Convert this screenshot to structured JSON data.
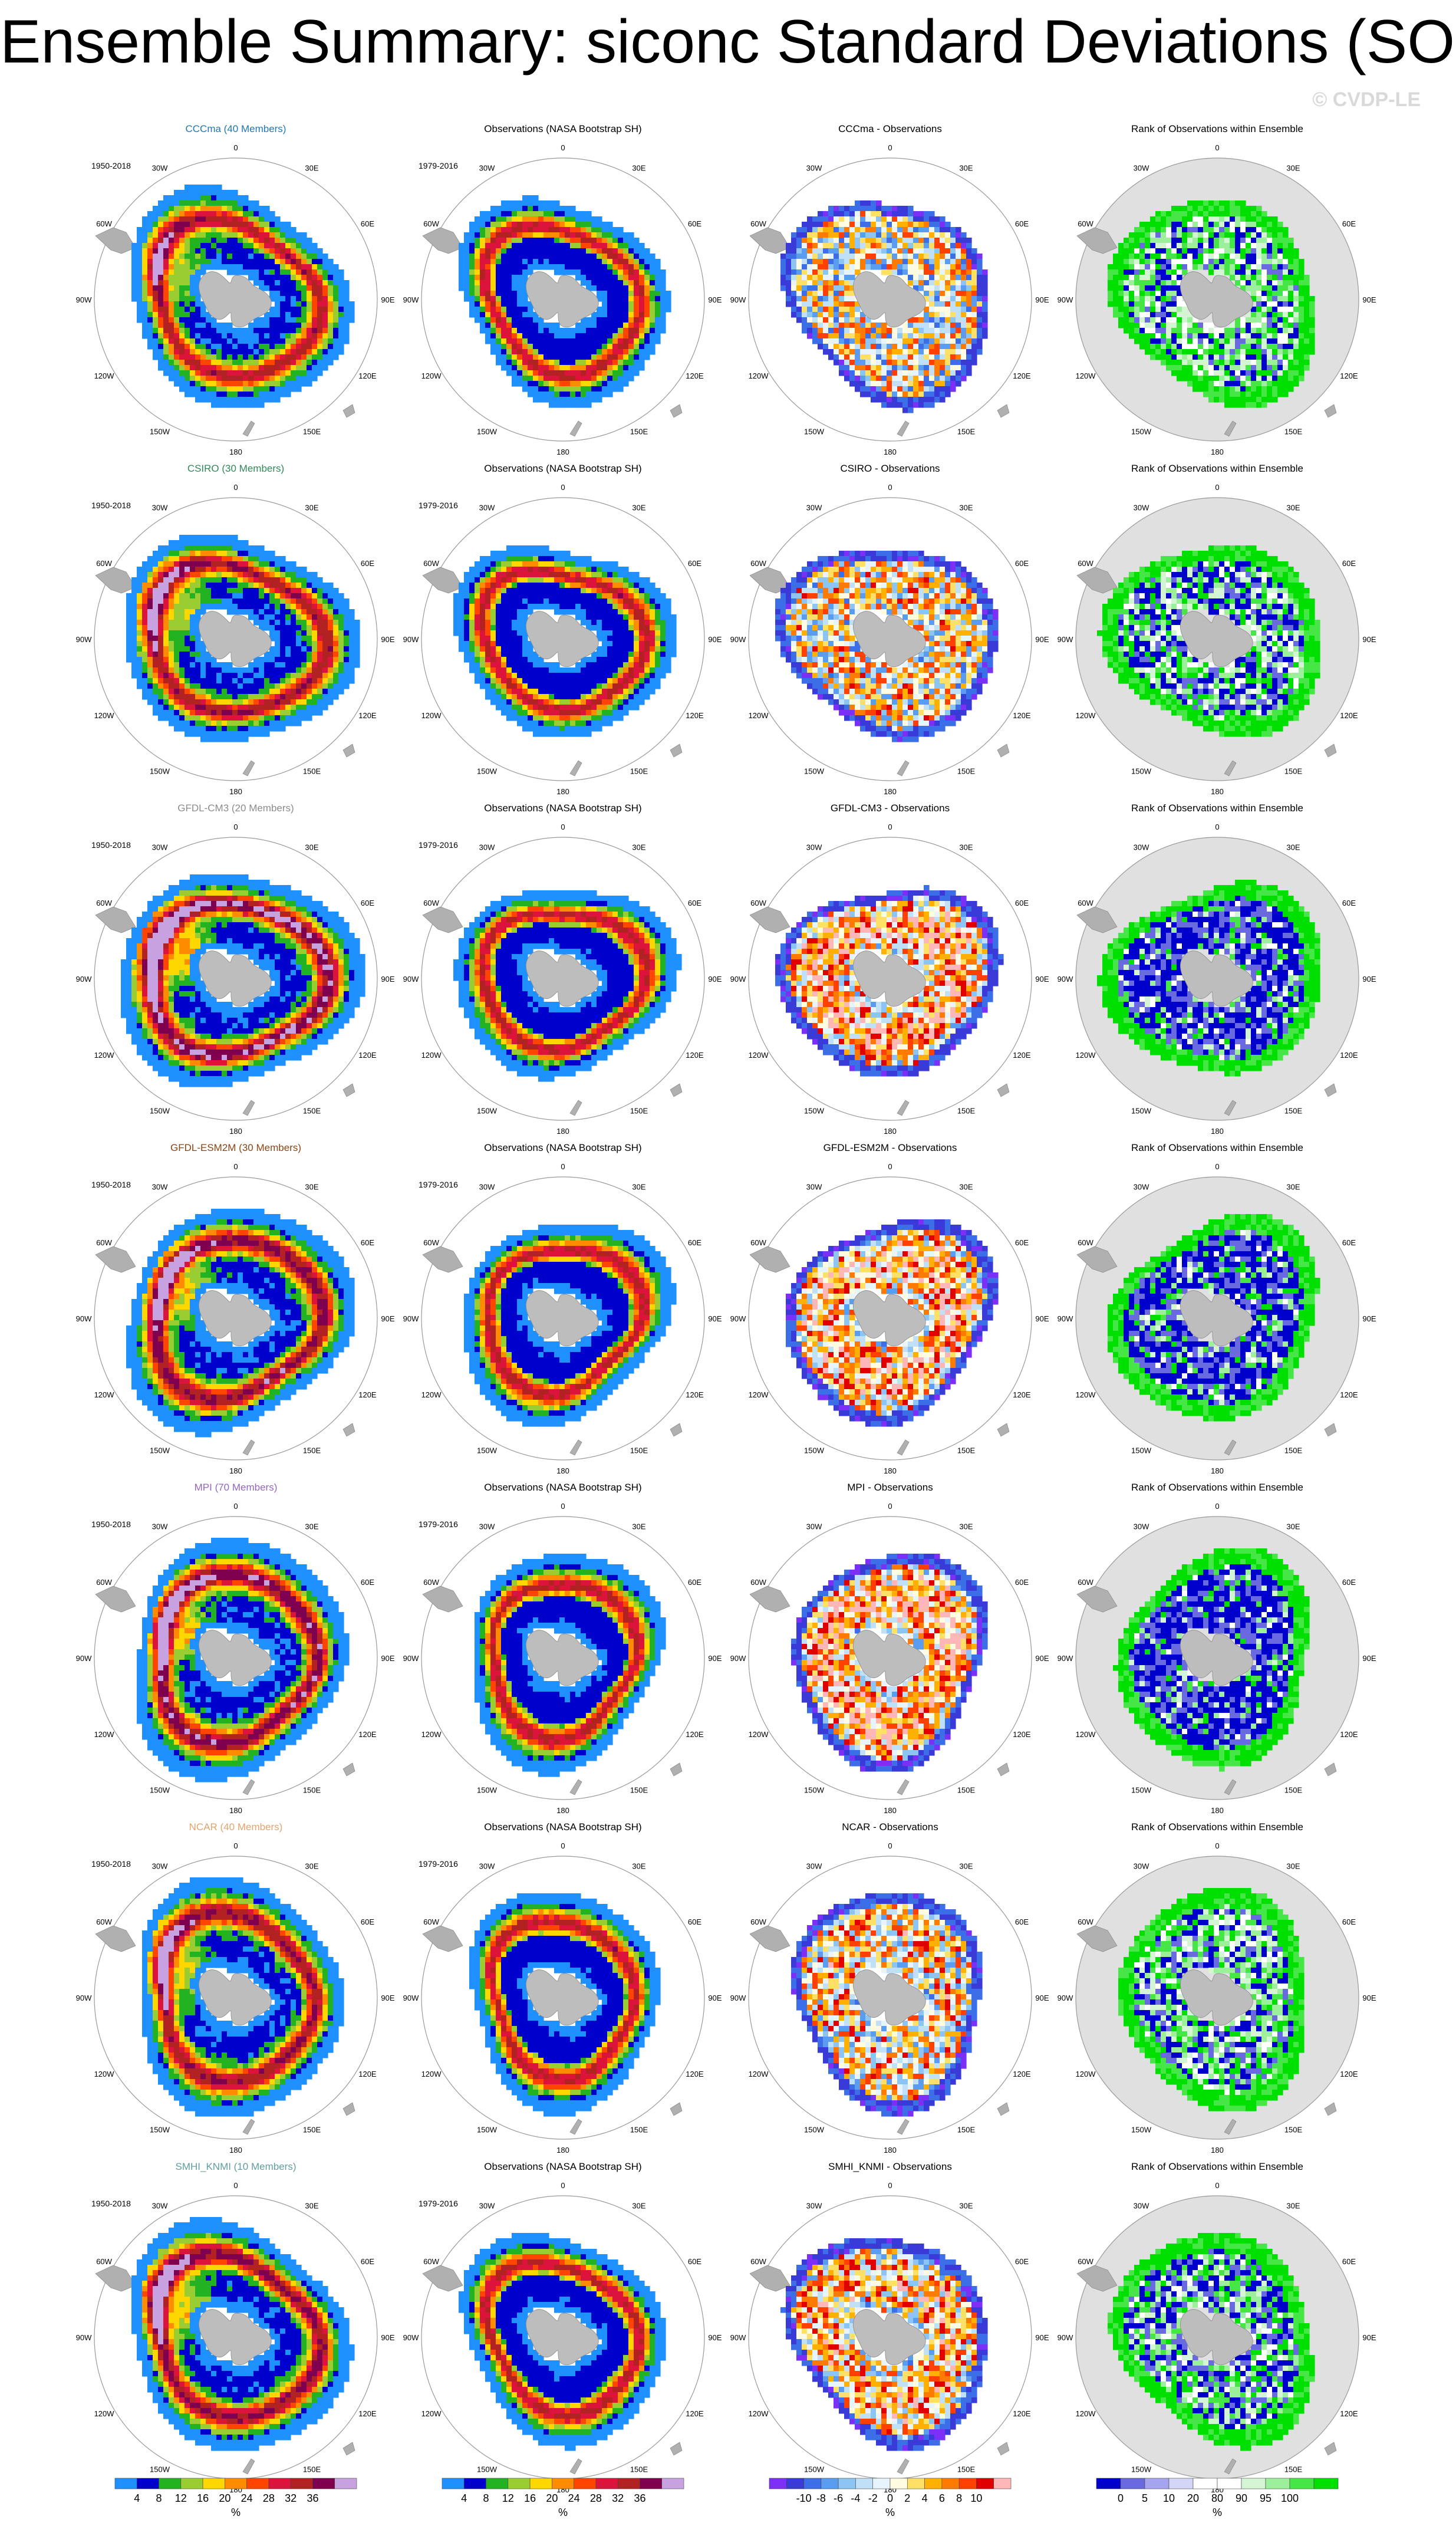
{
  "page": {
    "title": "Ensemble Summary: siconc Standard Deviations (SON)",
    "watermark": "© CVDP-LE"
  },
  "chart_data": {
    "type": "heatmap",
    "projection": "south-polar-stereographic",
    "lon_labels": [
      "0",
      "30E",
      "60E",
      "90E",
      "120E",
      "150E",
      "180",
      "150W",
      "120W",
      "90W",
      "60W",
      "30W"
    ],
    "columns": [
      {
        "kind": "ensemble",
        "colorbar": "sd"
      },
      {
        "kind": "observations",
        "colorbar": "sd"
      },
      {
        "kind": "difference",
        "colorbar": "diff"
      },
      {
        "kind": "rank",
        "colorbar": "rank"
      }
    ],
    "rows": [
      {
        "model": "CCCma",
        "title": "CCCma (40 Members)",
        "title_color": "#1f77b4",
        "diff_title": "CCCma - Observations",
        "period": "1950-2018",
        "intensity": 0.6,
        "diff_bias": 0.0,
        "rank_low": 0.3
      },
      {
        "model": "CSIRO",
        "title": "CSIRO (30 Members)",
        "title_color": "#2e8b57",
        "diff_title": "CSIRO - Observations",
        "period": "1950-2018",
        "intensity": 0.7,
        "diff_bias": 0.2,
        "rank_low": 0.4
      },
      {
        "model": "GFDL-CM3",
        "title": "GFDL-CM3 (20 Members)",
        "title_color": "#8c8c8c",
        "diff_title": "GFDL-CM3 - Observations",
        "period": "1950-2018",
        "intensity": 1.0,
        "diff_bias": 0.8,
        "rank_low": 0.75
      },
      {
        "model": "GFDL-ESM2M",
        "title": "GFDL-ESM2M (30 Members)",
        "title_color": "#8b4513",
        "diff_title": "GFDL-ESM2M - Observations",
        "period": "1950-2018",
        "intensity": 0.85,
        "diff_bias": 0.7,
        "rank_low": 0.7
      },
      {
        "model": "MPI",
        "title": "MPI (70 Members)",
        "title_color": "#9467bd",
        "diff_title": "MPI - Observations",
        "period": "1950-2018",
        "intensity": 0.9,
        "diff_bias": 0.85,
        "rank_low": 0.8
      },
      {
        "model": "NCAR",
        "title": "NCAR (40 Members)",
        "title_color": "#e3a36c",
        "diff_title": "NCAR - Observations",
        "period": "1950-2018",
        "intensity": 0.75,
        "diff_bias": 0.3,
        "rank_low": 0.35
      },
      {
        "model": "SMHI_KNMI",
        "title": "SMHI_KNMI (10 Members)",
        "title_color": "#5f9ea0",
        "diff_title": "SMHI_KNMI - Observations",
        "period": "1950-2018",
        "intensity": 0.8,
        "diff_bias": 0.5,
        "rank_low": 0.45
      }
    ],
    "observations": {
      "title": "Observations (NASA Bootstrap SH)",
      "period": "1979-2016"
    },
    "rank_title": "Rank of Observations within Ensemble",
    "colorbars": {
      "sd": {
        "ticks": [
          "4",
          "8",
          "12",
          "16",
          "20",
          "24",
          "28",
          "32",
          "36"
        ],
        "unit": "%",
        "colors": [
          "#1e90ff",
          "#0000cd",
          "#22b222",
          "#9acd32",
          "#ffd700",
          "#ff8c00",
          "#ff4500",
          "#dc143c",
          "#b22222",
          "#800050",
          "#c8a2e0"
        ]
      },
      "diff": {
        "ticks": [
          "-10",
          "-8",
          "-6",
          "-4",
          "-2",
          "0",
          "2",
          "4",
          "6",
          "8",
          "10"
        ],
        "unit": "%",
        "colors": [
          "#7b2ff7",
          "#3a3ad8",
          "#3c6ee8",
          "#5a9cf0",
          "#8cc4f4",
          "#c0e0f8",
          "#e8f4fc",
          "#fffbe0",
          "#ffe066",
          "#ffb000",
          "#ff7a00",
          "#ff4000",
          "#e00000",
          "#ffb6b6"
        ]
      },
      "rank": {
        "ticks": [
          "0",
          "5",
          "10",
          "20",
          "80",
          "90",
          "95",
          "100"
        ],
        "unit": "%",
        "colors": [
          "#0000cd",
          "#6a6ae0",
          "#a5a5ef",
          "#d5d5f7",
          "#ffffff",
          "#ffffff",
          "#d4f5d4",
          "#9cf09c",
          "#46e646",
          "#00e000"
        ]
      }
    }
  }
}
